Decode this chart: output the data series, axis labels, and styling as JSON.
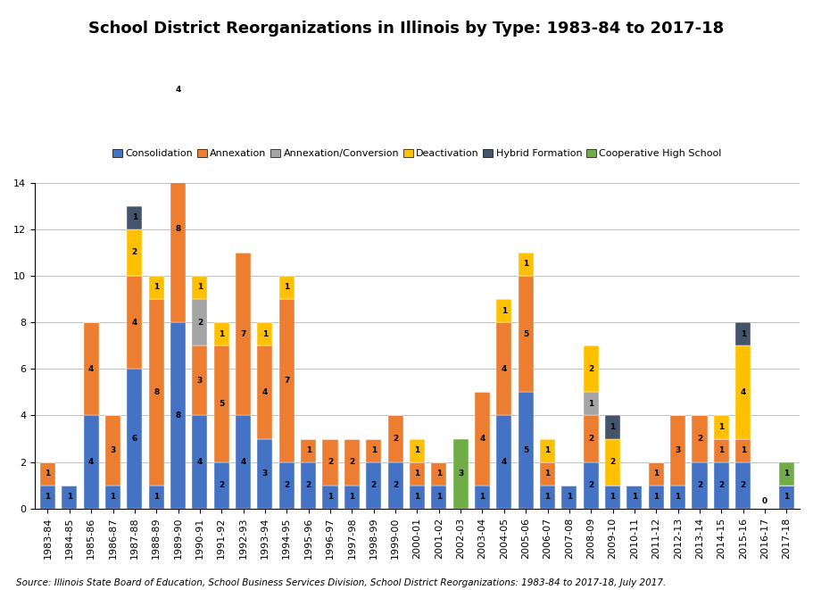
{
  "title": "School District Reorganizations in Illinois by Type: 1983-84 to 2017-18",
  "source": "Source: Illinois State Board of Education, School Business Services Division, School District Reorganizations: 1983-84 to 2017-18, July 2017.",
  "categories": [
    "1983-84",
    "1984-85",
    "1985-86",
    "1986-87",
    "1987-88",
    "1988-89",
    "1989-90",
    "1990-91",
    "1991-92",
    "1992-93",
    "1993-94",
    "1994-95",
    "1995-96",
    "1996-97",
    "1997-98",
    "1998-99",
    "1999-00",
    "2000-01",
    "2001-02",
    "2002-03",
    "2003-04",
    "2004-05",
    "2005-06",
    "2006-07",
    "2007-08",
    "2008-09",
    "2009-10",
    "2010-11",
    "2011-12",
    "2012-13",
    "2013-14",
    "2014-15",
    "2015-16",
    "2016-17",
    "2017-18"
  ],
  "series": {
    "Consolidation": [
      1,
      1,
      4,
      1,
      6,
      1,
      8,
      4,
      2,
      4,
      3,
      2,
      2,
      1,
      1,
      2,
      2,
      1,
      1,
      0,
      1,
      4,
      5,
      1,
      1,
      2,
      1,
      1,
      1,
      1,
      2,
      2,
      2,
      0,
      1
    ],
    "Annexation": [
      1,
      0,
      4,
      3,
      4,
      8,
      8,
      3,
      5,
      7,
      4,
      7,
      1,
      2,
      2,
      1,
      2,
      1,
      1,
      0,
      4,
      4,
      5,
      1,
      0,
      2,
      0,
      0,
      1,
      3,
      2,
      1,
      1,
      0,
      0
    ],
    "Annexation/Conversion": [
      0,
      0,
      0,
      0,
      0,
      0,
      0,
      2,
      0,
      0,
      0,
      0,
      0,
      0,
      0,
      0,
      0,
      0,
      0,
      0,
      0,
      0,
      0,
      0,
      0,
      1,
      0,
      0,
      0,
      0,
      0,
      0,
      0,
      0,
      0
    ],
    "Deactivation": [
      0,
      0,
      0,
      0,
      2,
      1,
      4,
      1,
      1,
      0,
      1,
      1,
      0,
      0,
      0,
      0,
      0,
      1,
      0,
      0,
      0,
      1,
      1,
      1,
      0,
      2,
      2,
      0,
      0,
      0,
      0,
      1,
      4,
      0,
      0
    ],
    "Hybrid Formation": [
      0,
      0,
      0,
      0,
      1,
      0,
      0,
      0,
      0,
      0,
      0,
      0,
      0,
      0,
      0,
      0,
      0,
      0,
      0,
      0,
      0,
      0,
      0,
      0,
      0,
      0,
      1,
      0,
      0,
      0,
      0,
      0,
      1,
      0,
      0
    ],
    "Cooperative High School": [
      0,
      0,
      0,
      0,
      0,
      0,
      0,
      0,
      0,
      0,
      0,
      0,
      0,
      0,
      0,
      0,
      0,
      0,
      0,
      3,
      0,
      0,
      0,
      0,
      0,
      0,
      0,
      0,
      0,
      0,
      0,
      0,
      0,
      0,
      1
    ]
  },
  "series_colors": [
    "#4472C4",
    "#ED7D31",
    "#A5A5A5",
    "#FFC000",
    "#44546A",
    "#70AD47"
  ],
  "series_names": [
    "Consolidation",
    "Annexation",
    "Annexation/Conversion",
    "Deactivation",
    "Hybrid Formation",
    "Cooperative High School"
  ],
  "ylim": [
    0,
    14
  ],
  "yticks": [
    0,
    2,
    4,
    6,
    8,
    10,
    12,
    14
  ],
  "bar_width": 0.7,
  "title_fontsize": 13,
  "legend_fontsize": 8,
  "tick_fontsize": 8,
  "source_fontsize": 7.5
}
